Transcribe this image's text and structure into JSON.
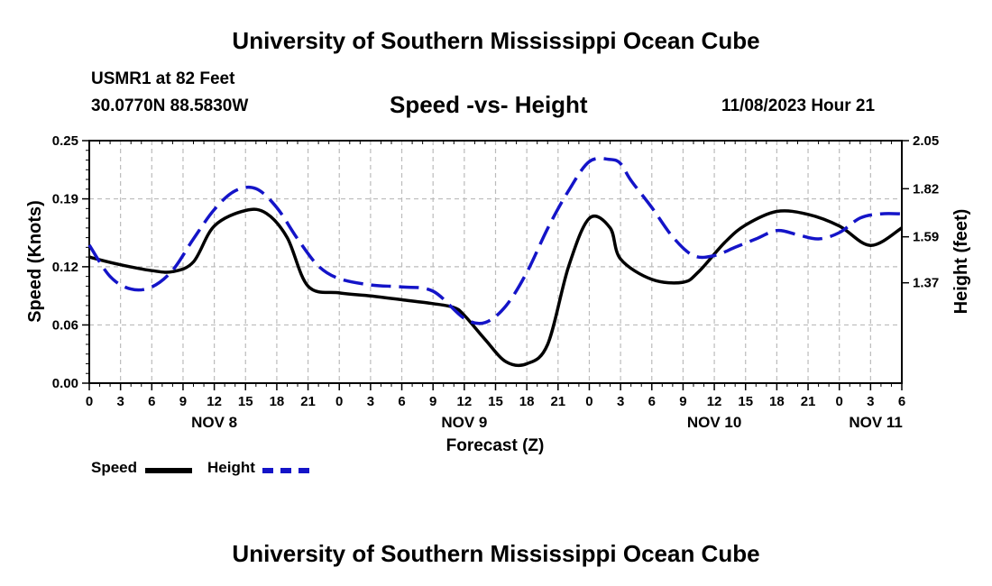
{
  "header": {
    "title": "University of Southern Mississippi Ocean Cube",
    "station": "USMR1 at 82 Feet",
    "coords": "30.0770N  88.5830W",
    "subtitle": "Speed -vs- Height",
    "datetime": "11/08/2023 Hour 21"
  },
  "footer": {
    "title": "University of Southern Mississippi Ocean Cube"
  },
  "legend": {
    "speed_label": "Speed",
    "height_label": "Height"
  },
  "colors": {
    "speed": "#000000",
    "height": "#1414c8",
    "grid": "#bbbbbb"
  },
  "chart_data": {
    "type": "line",
    "title": "Speed -vs- Height",
    "xlabel": "Forecast (Z)",
    "ylabel": "Speed (Knots)",
    "y2label": "Height (feet)",
    "x_range": [
      0,
      78
    ],
    "x_tick_labels": [
      "0",
      "3",
      "6",
      "9",
      "12",
      "15",
      "18",
      "21",
      "0",
      "3",
      "6",
      "9",
      "12",
      "15",
      "18",
      "21",
      "0",
      "3",
      "6",
      "9",
      "12",
      "15",
      "18",
      "21",
      "0",
      "3",
      "6"
    ],
    "day_labels": [
      {
        "label": "NOV 8",
        "x": 12
      },
      {
        "label": "NOV 9",
        "x": 36
      },
      {
        "label": "NOV 10",
        "x": 60
      },
      {
        "label": "NOV 11",
        "x": 75.5
      }
    ],
    "ylim": [
      0,
      0.25
    ],
    "y_ticks": [
      0.0,
      0.06,
      0.12,
      0.19,
      0.25
    ],
    "y_tick_labels": [
      "0.00",
      "0.06",
      "0.12",
      "0.19",
      "0.25"
    ],
    "y2lim": [
      0.89,
      2.05
    ],
    "y2_ticks": [
      1.37,
      1.59,
      1.82,
      2.05
    ],
    "y2_tick_labels": [
      "1.37",
      "1.59",
      "1.82",
      "2.05"
    ],
    "grid": true,
    "series": [
      {
        "name": "Speed",
        "axis": "left",
        "style": "solid",
        "x": [
          0,
          3,
          6,
          8,
          10,
          12,
          15,
          17,
          19,
          21,
          24,
          27,
          30,
          33,
          35,
          36,
          38,
          40,
          42,
          44,
          46,
          48,
          50,
          51,
          54,
          57,
          58.5,
          61,
          63,
          66,
          69,
          72,
          75,
          78
        ],
        "values": [
          0.13,
          0.122,
          0.116,
          0.115,
          0.125,
          0.162,
          0.178,
          0.175,
          0.15,
          0.1,
          0.093,
          0.09,
          0.086,
          0.082,
          0.078,
          0.07,
          0.045,
          0.022,
          0.02,
          0.04,
          0.12,
          0.17,
          0.16,
          0.128,
          0.107,
          0.104,
          0.115,
          0.145,
          0.163,
          0.177,
          0.174,
          0.162,
          0.142,
          0.16
        ]
      },
      {
        "name": "Height",
        "axis": "right",
        "style": "dashed",
        "x": [
          0,
          2,
          4,
          6,
          8,
          10,
          12,
          14,
          16,
          18,
          20,
          22,
          24,
          27,
          30,
          33,
          36,
          38,
          40,
          42,
          44,
          46,
          48,
          50,
          51,
          52,
          54,
          56,
          58,
          60,
          62,
          64,
          66,
          68,
          70,
          72,
          74,
          76,
          78
        ],
        "values": [
          1.55,
          1.4,
          1.34,
          1.35,
          1.43,
          1.58,
          1.72,
          1.81,
          1.82,
          1.73,
          1.58,
          1.45,
          1.39,
          1.36,
          1.35,
          1.33,
          1.2,
          1.18,
          1.26,
          1.42,
          1.63,
          1.81,
          1.95,
          1.96,
          1.94,
          1.86,
          1.73,
          1.59,
          1.5,
          1.5,
          1.54,
          1.58,
          1.62,
          1.6,
          1.58,
          1.61,
          1.68,
          1.7,
          1.7
        ]
      }
    ]
  }
}
